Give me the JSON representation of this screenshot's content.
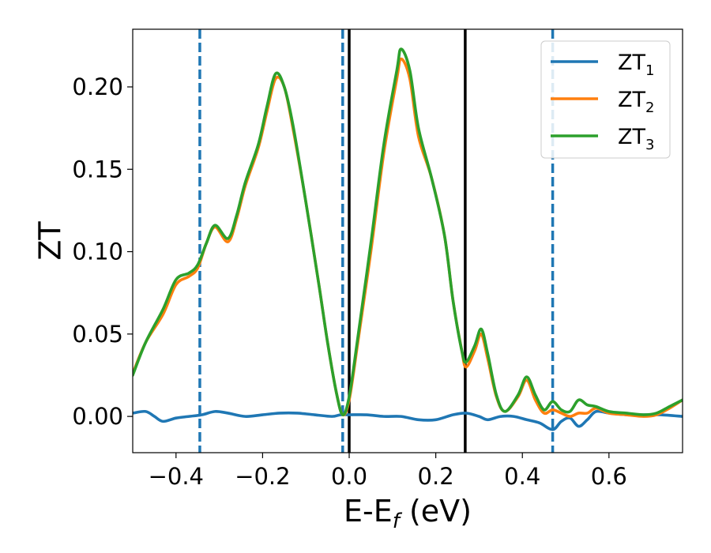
{
  "chart_data": {
    "type": "line",
    "xlabel_main": "E-E",
    "xlabel_sub": "f",
    "xlabel_unit": " (eV)",
    "ylabel": "ZT",
    "xlim": [
      -0.5,
      0.77
    ],
    "ylim": [
      -0.022,
      0.235
    ],
    "grid": false,
    "legend_position": "top-right",
    "x_ticks": [
      {
        "value": -0.4,
        "label": "−0.4"
      },
      {
        "value": -0.2,
        "label": "−0.2"
      },
      {
        "value": 0.0,
        "label": "0.0"
      },
      {
        "value": 0.2,
        "label": "0.2"
      },
      {
        "value": 0.4,
        "label": "0.4"
      },
      {
        "value": 0.6,
        "label": "0.6"
      }
    ],
    "y_ticks": [
      {
        "value": 0.0,
        "label": "0.00"
      },
      {
        "value": 0.05,
        "label": "0.05"
      },
      {
        "value": 0.1,
        "label": "0.10"
      },
      {
        "value": 0.15,
        "label": "0.15"
      },
      {
        "value": 0.2,
        "label": "0.20"
      }
    ],
    "vlines": [
      {
        "x": -0.345,
        "style": "dashed",
        "color": "#1f77b4"
      },
      {
        "x": -0.015,
        "style": "dashed",
        "color": "#1f77b4"
      },
      {
        "x": 0.0,
        "style": "solid",
        "color": "#000000"
      },
      {
        "x": 0.268,
        "style": "solid",
        "color": "#000000"
      },
      {
        "x": 0.47,
        "style": "dashed",
        "color": "#1f77b4"
      }
    ],
    "series": [
      {
        "name": "ZT",
        "sub": "1",
        "color": "#1f77b4",
        "points": [
          [
            -0.5,
            0.002
          ],
          [
            -0.47,
            0.003
          ],
          [
            -0.45,
            0.0
          ],
          [
            -0.43,
            -0.003
          ],
          [
            -0.4,
            -0.001
          ],
          [
            -0.37,
            0.0
          ],
          [
            -0.34,
            0.001
          ],
          [
            -0.31,
            0.003
          ],
          [
            -0.28,
            0.002
          ],
          [
            -0.24,
            0.0
          ],
          [
            -0.2,
            0.001
          ],
          [
            -0.16,
            0.002
          ],
          [
            -0.12,
            0.002
          ],
          [
            -0.08,
            0.001
          ],
          [
            -0.04,
            0.0
          ],
          [
            -0.02,
            0.001
          ],
          [
            0.0,
            0.001
          ],
          [
            0.04,
            0.001
          ],
          [
            0.08,
            0.0
          ],
          [
            0.12,
            0.0
          ],
          [
            0.16,
            -0.002
          ],
          [
            0.2,
            -0.002
          ],
          [
            0.24,
            0.001
          ],
          [
            0.27,
            0.002
          ],
          [
            0.3,
            0.0
          ],
          [
            0.32,
            -0.002
          ],
          [
            0.35,
            0.0
          ],
          [
            0.38,
            0.0
          ],
          [
            0.41,
            -0.002
          ],
          [
            0.44,
            -0.004
          ],
          [
            0.47,
            -0.008
          ],
          [
            0.49,
            -0.003
          ],
          [
            0.51,
            -0.001
          ],
          [
            0.53,
            -0.006
          ],
          [
            0.55,
            -0.002
          ],
          [
            0.57,
            0.003
          ],
          [
            0.6,
            0.002
          ],
          [
            0.64,
            0.001
          ],
          [
            0.68,
            0.001
          ],
          [
            0.72,
            0.001
          ],
          [
            0.77,
            0.0
          ]
        ]
      },
      {
        "name": "ZT",
        "sub": "2",
        "color": "#ff7f0e",
        "points": [
          [
            -0.5,
            0.026
          ],
          [
            -0.47,
            0.045
          ],
          [
            -0.43,
            0.062
          ],
          [
            -0.4,
            0.08
          ],
          [
            -0.37,
            0.085
          ],
          [
            -0.35,
            0.09
          ],
          [
            -0.33,
            0.105
          ],
          [
            -0.31,
            0.115
          ],
          [
            -0.28,
            0.106
          ],
          [
            -0.26,
            0.12
          ],
          [
            -0.24,
            0.14
          ],
          [
            -0.21,
            0.163
          ],
          [
            -0.19,
            0.185
          ],
          [
            -0.17,
            0.205
          ],
          [
            -0.15,
            0.2
          ],
          [
            -0.13,
            0.175
          ],
          [
            -0.1,
            0.13
          ],
          [
            -0.07,
            0.08
          ],
          [
            -0.05,
            0.045
          ],
          [
            -0.03,
            0.015
          ],
          [
            -0.015,
            0.001
          ],
          [
            0.0,
            0.01
          ],
          [
            0.02,
            0.045
          ],
          [
            0.05,
            0.1
          ],
          [
            0.08,
            0.16
          ],
          [
            0.11,
            0.205
          ],
          [
            0.12,
            0.217
          ],
          [
            0.14,
            0.205
          ],
          [
            0.16,
            0.17
          ],
          [
            0.19,
            0.145
          ],
          [
            0.22,
            0.11
          ],
          [
            0.24,
            0.07
          ],
          [
            0.26,
            0.04
          ],
          [
            0.27,
            0.03
          ],
          [
            0.29,
            0.04
          ],
          [
            0.305,
            0.05
          ],
          [
            0.32,
            0.035
          ],
          [
            0.34,
            0.012
          ],
          [
            0.36,
            0.003
          ],
          [
            0.39,
            0.012
          ],
          [
            0.41,
            0.022
          ],
          [
            0.43,
            0.01
          ],
          [
            0.45,
            0.002
          ],
          [
            0.47,
            0.004
          ],
          [
            0.49,
            0.002
          ],
          [
            0.51,
            0.0
          ],
          [
            0.53,
            0.002
          ],
          [
            0.55,
            0.002
          ],
          [
            0.57,
            0.005
          ],
          [
            0.6,
            0.002
          ],
          [
            0.64,
            0.001
          ],
          [
            0.68,
            0.0
          ],
          [
            0.71,
            0.001
          ],
          [
            0.74,
            0.005
          ],
          [
            0.77,
            0.01
          ]
        ]
      },
      {
        "name": "ZT",
        "sub": "3",
        "color": "#2ca02c",
        "points": [
          [
            -0.5,
            0.025
          ],
          [
            -0.47,
            0.045
          ],
          [
            -0.43,
            0.065
          ],
          [
            -0.4,
            0.083
          ],
          [
            -0.37,
            0.087
          ],
          [
            -0.35,
            0.092
          ],
          [
            -0.33,
            0.105
          ],
          [
            -0.31,
            0.116
          ],
          [
            -0.28,
            0.108
          ],
          [
            -0.26,
            0.122
          ],
          [
            -0.24,
            0.142
          ],
          [
            -0.21,
            0.165
          ],
          [
            -0.19,
            0.188
          ],
          [
            -0.17,
            0.208
          ],
          [
            -0.15,
            0.2
          ],
          [
            -0.13,
            0.177
          ],
          [
            -0.1,
            0.13
          ],
          [
            -0.07,
            0.08
          ],
          [
            -0.05,
            0.045
          ],
          [
            -0.03,
            0.015
          ],
          [
            -0.015,
            0.001
          ],
          [
            0.0,
            0.012
          ],
          [
            0.02,
            0.048
          ],
          [
            0.05,
            0.105
          ],
          [
            0.08,
            0.165
          ],
          [
            0.11,
            0.21
          ],
          [
            0.12,
            0.223
          ],
          [
            0.14,
            0.21
          ],
          [
            0.16,
            0.175
          ],
          [
            0.19,
            0.145
          ],
          [
            0.22,
            0.11
          ],
          [
            0.24,
            0.07
          ],
          [
            0.26,
            0.04
          ],
          [
            0.27,
            0.033
          ],
          [
            0.29,
            0.043
          ],
          [
            0.305,
            0.053
          ],
          [
            0.32,
            0.038
          ],
          [
            0.34,
            0.013
          ],
          [
            0.36,
            0.003
          ],
          [
            0.39,
            0.013
          ],
          [
            0.41,
            0.024
          ],
          [
            0.43,
            0.013
          ],
          [
            0.45,
            0.004
          ],
          [
            0.47,
            0.009
          ],
          [
            0.49,
            0.004
          ],
          [
            0.51,
            0.003
          ],
          [
            0.53,
            0.01
          ],
          [
            0.55,
            0.007
          ],
          [
            0.57,
            0.006
          ],
          [
            0.6,
            0.003
          ],
          [
            0.64,
            0.002
          ],
          [
            0.68,
            0.001
          ],
          [
            0.71,
            0.002
          ],
          [
            0.74,
            0.006
          ],
          [
            0.77,
            0.01
          ]
        ]
      }
    ]
  }
}
